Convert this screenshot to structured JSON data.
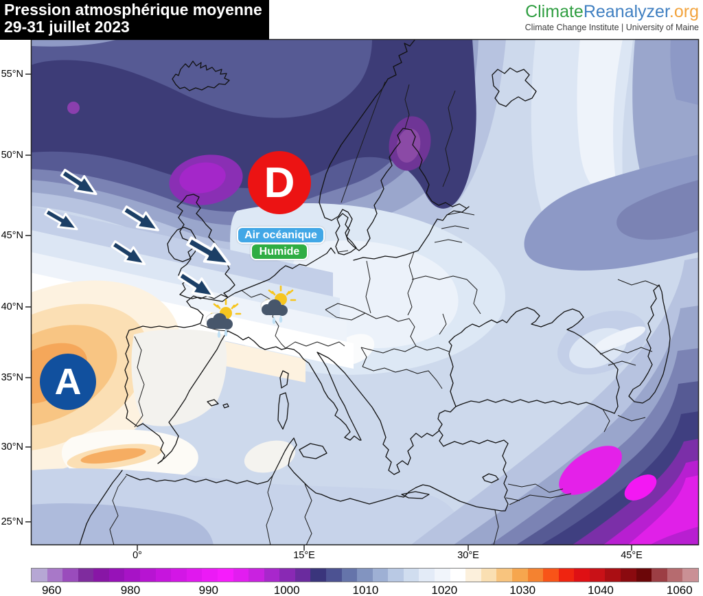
{
  "header": {
    "title_line1": "Pression atmosphérique moyenne",
    "title_line2": "29-31 juillet 2023"
  },
  "logo": {
    "brand_climate": "Climate",
    "brand_reanalyzer": "Reanalyzer",
    "brand_org": ".org",
    "subtitle": "Climate Change Institute | University of Maine",
    "color_climate": "#2f9e41",
    "color_reanalyzer": "#3f7fc1",
    "color_org": "#f2a33c"
  },
  "map": {
    "low_center_label": "D",
    "low_center_color": "#ec1313",
    "high_center_label": "A",
    "high_center_color": "#11509e",
    "annotation_air": "Air océanique",
    "annotation_air_color": "#41a7e6",
    "annotation_humide": "Humide",
    "annotation_humide_color": "#2fad43",
    "arrow_color": "#1c3f66",
    "arrow_count": 6,
    "weather_icon": "sun-rain-cloud",
    "weather_icon_count": 2,
    "axes": {
      "lat": [
        "55°N",
        "50°N",
        "45°N",
        "40°N",
        "35°N",
        "30°N",
        "25°N"
      ],
      "lon": [
        "0°",
        "15°E",
        "30°E",
        "45°E"
      ]
    }
  },
  "colorbar": {
    "title": "",
    "tick_labels": [
      "960",
      "980",
      "990",
      "1000",
      "1010",
      "1020",
      "1030",
      "1040",
      "1060"
    ],
    "colors": [
      "#b6a7d4",
      "#a878c8",
      "#9a4cbc",
      "#7f2c9e",
      "#8816a6",
      "#9712b8",
      "#a713c6",
      "#b714d2",
      "#c615dd",
      "#d316e6",
      "#e018ee",
      "#ec1af6",
      "#f61cfc",
      "#e21df0",
      "#c922e0",
      "#a827cc",
      "#8929b4",
      "#6a2b9e",
      "#3a357c",
      "#4c5292",
      "#6574aa",
      "#8294c0",
      "#9eb0d4",
      "#b9c9e4",
      "#d0ddef",
      "#e3ebf7",
      "#f1f5fb",
      "#ffffff",
      "#fcf0dc",
      "#fadfb2",
      "#f8c47e",
      "#f6a64e",
      "#f48230",
      "#f85418",
      "#ef2410",
      "#df1014",
      "#c91117",
      "#aa0e13",
      "#8a0a0f",
      "#6b0608",
      "#9c3e44",
      "#b66b6f",
      "#ca9095"
    ]
  },
  "palette": {
    "base_sea_blue": "#cdd9ec",
    "trough_dark": "#3d3c77",
    "trough_core_purple": "#a427c9",
    "ridge_core_orange": "#f5a75a",
    "se_core_magenta": "#f318f3",
    "coastline": "#111111"
  }
}
